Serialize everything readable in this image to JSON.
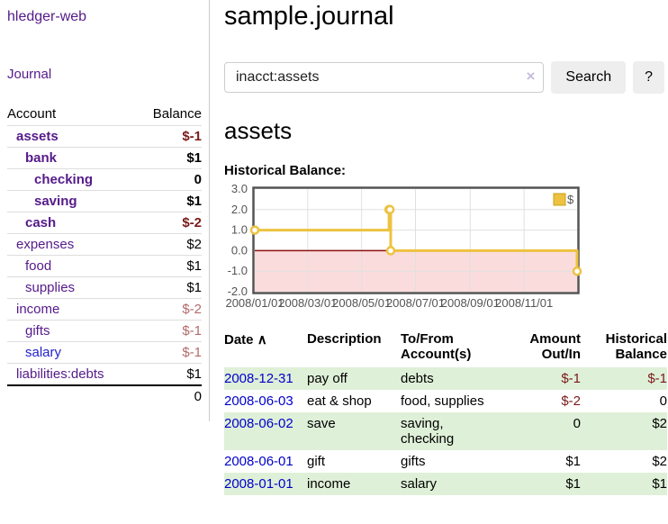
{
  "app": {
    "title": "hledger-web"
  },
  "colors": {
    "purple": "#551a8b",
    "blue": "#0000cc",
    "neg_strong": "#7b1a1a",
    "neg_soft": "#b36a6a",
    "row_shade": "#dff0d8",
    "button_bg": "#eeeeee",
    "line": "#edc240",
    "line_edge": "#c9a21c",
    "negative_fill": "#fbdcdc",
    "zero_line": "#8b1111",
    "grid": "#e0e0e0",
    "chart_border": "#545454",
    "axis_text": "#545454"
  },
  "sidebar": {
    "nav_journal": "Journal",
    "accounts": {
      "header_account": "Account",
      "header_balance": "Balance",
      "rows": [
        {
          "name": "assets",
          "balance": "$-1",
          "depth": 1,
          "bold": true,
          "neg": "strong"
        },
        {
          "name": "bank",
          "balance": "$1",
          "depth": 2,
          "bold": true,
          "neg": ""
        },
        {
          "name": "checking",
          "balance": "0",
          "depth": 3,
          "bold": true,
          "neg": ""
        },
        {
          "name": "saving",
          "balance": "$1",
          "depth": 3,
          "bold": true,
          "neg": ""
        },
        {
          "name": "cash",
          "balance": "$-2",
          "depth": 2,
          "bold": true,
          "neg": "strong"
        },
        {
          "name": "expenses",
          "balance": "$2",
          "depth": 1,
          "bold": false,
          "neg": ""
        },
        {
          "name": "food",
          "balance": "$1",
          "depth": 2,
          "bold": false,
          "neg": ""
        },
        {
          "name": "supplies",
          "balance": "$1",
          "depth": 2,
          "bold": false,
          "neg": ""
        },
        {
          "name": "income",
          "balance": "$-2",
          "depth": 1,
          "bold": false,
          "neg": "soft"
        },
        {
          "name": "gifts",
          "balance": "$-1",
          "depth": 2,
          "bold": false,
          "neg": "soft"
        },
        {
          "name": "salary",
          "balance": "$-1",
          "depth": 2,
          "bold": false,
          "neg": "soft",
          "link": "blue"
        },
        {
          "name": "liabilities:debts",
          "balance": "$1",
          "depth": 1,
          "bold": false,
          "neg": ""
        }
      ],
      "total": "0"
    }
  },
  "main": {
    "title": "sample.journal",
    "search": {
      "value": "inacct:assets",
      "clear_icon": "×",
      "button_label": "Search",
      "help_label": "?"
    },
    "account_heading": "assets",
    "chart_label": "Historical Balance:",
    "register": {
      "sort_icon": "∧",
      "headers": {
        "date": "Date",
        "description": "Description",
        "accounts": "To/From Account(s)",
        "amount": "Amount Out/In",
        "balance": "Historical Balance"
      },
      "rows": [
        {
          "date": "2008-12-31",
          "description": "pay off",
          "accounts": "debts",
          "amount": "$-1",
          "balance": "$-1"
        },
        {
          "date": "2008-06-03",
          "description": "eat & shop",
          "accounts": "food, supplies",
          "amount": "$-2",
          "balance": "0"
        },
        {
          "date": "2008-06-02",
          "description": "save",
          "accounts": "saving, checking",
          "amount": "0",
          "balance": "$2"
        },
        {
          "date": "2008-06-01",
          "description": "gift",
          "accounts": "gifts",
          "amount": "$1",
          "balance": "$2"
        },
        {
          "date": "2008-01-01",
          "description": "income",
          "accounts": "salary",
          "amount": "$1",
          "balance": "$1"
        }
      ]
    }
  },
  "chart_data": {
    "type": "line",
    "subtype": "step",
    "title": "Historical Balance:",
    "series": [
      {
        "name": "$",
        "points": [
          [
            "2008-01-01",
            1
          ],
          [
            "2008-06-01",
            2
          ],
          [
            "2008-06-02",
            2
          ],
          [
            "2008-06-03",
            0
          ],
          [
            "2008-12-31",
            -1
          ]
        ]
      }
    ],
    "x_range": [
      "2008-01-01",
      "2008-12-31"
    ],
    "ylim": [
      -2,
      3
    ],
    "y_ticks": [
      "3.0",
      "2.0",
      "1.0",
      "0.0",
      "-1.0",
      "-2.0"
    ],
    "x_ticks": [
      {
        "date": "2008-01-01",
        "label": "2008/01/01"
      },
      {
        "date": "2008-03-01",
        "label": "2008/03/01"
      },
      {
        "date": "2008-05-01",
        "label": "2008/05/01"
      },
      {
        "date": "2008-07-01",
        "label": "2008/07/01"
      },
      {
        "date": "2008-09-01",
        "label": "2008/09/01"
      },
      {
        "date": "2008-11-01",
        "label": "2008/11/01"
      }
    ],
    "grid": true,
    "negative_region_shaded": true,
    "legend": {
      "position": "top-right",
      "entries": [
        {
          "label": "$",
          "color": "#edc240"
        }
      ]
    }
  }
}
